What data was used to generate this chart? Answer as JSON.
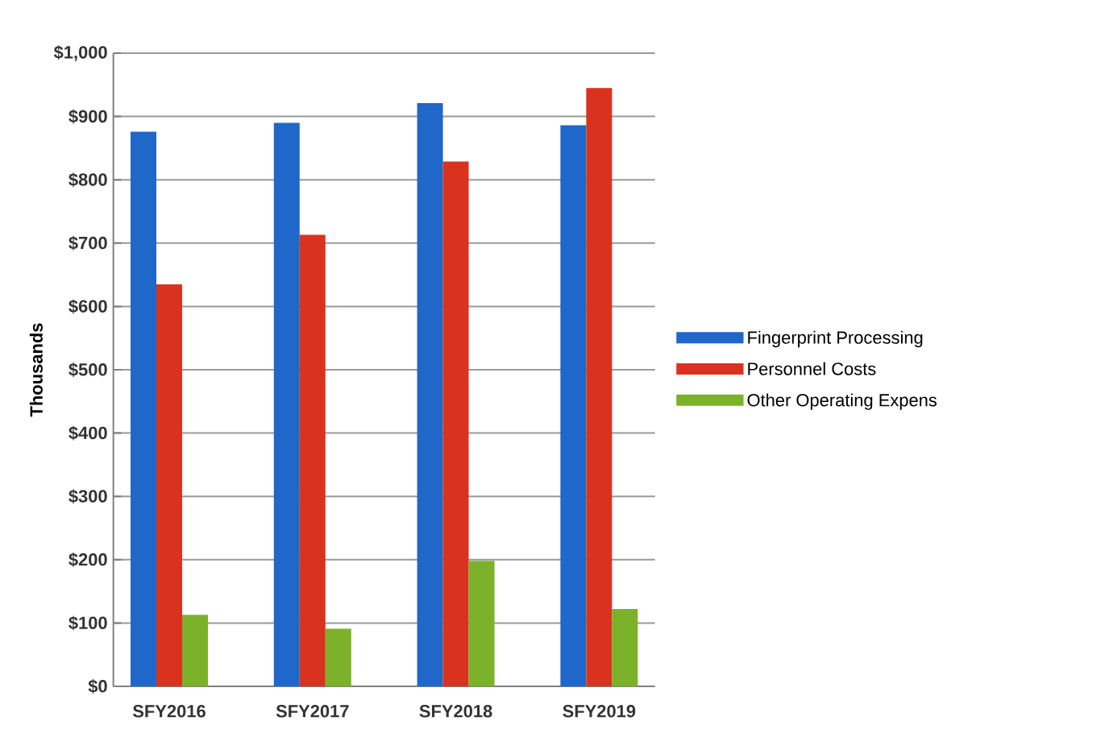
{
  "chart_data": {
    "type": "bar",
    "ylabel": "Thousands",
    "categories": [
      "SFY2016",
      "SFY2017",
      "SFY2018",
      "SFY2019"
    ],
    "series": [
      {
        "name": "Fingerprint Processing",
        "color": "#1f67c9",
        "values": [
          876,
          890,
          921,
          886
        ]
      },
      {
        "name": "Personnel Costs",
        "color": "#d93320",
        "values": [
          635,
          713,
          829,
          945
        ]
      },
      {
        "name": "Other Operating Expens",
        "color": "#7cb22a",
        "values": [
          113,
          91,
          198,
          122
        ]
      }
    ],
    "ylim": [
      0,
      1000
    ],
    "yticks": [
      {
        "value": 0,
        "label": "$0"
      },
      {
        "value": 100,
        "label": "$100"
      },
      {
        "value": 200,
        "label": "$200"
      },
      {
        "value": 300,
        "label": "$300"
      },
      {
        "value": 400,
        "label": "$400"
      },
      {
        "value": 500,
        "label": "$500"
      },
      {
        "value": 600,
        "label": "$600"
      },
      {
        "value": 700,
        "label": "$700"
      },
      {
        "value": 800,
        "label": "$800"
      },
      {
        "value": 900,
        "label": "$900"
      },
      {
        "value": 1000,
        "label": "$1,000"
      }
    ],
    "grid": "y",
    "legend": "right"
  }
}
